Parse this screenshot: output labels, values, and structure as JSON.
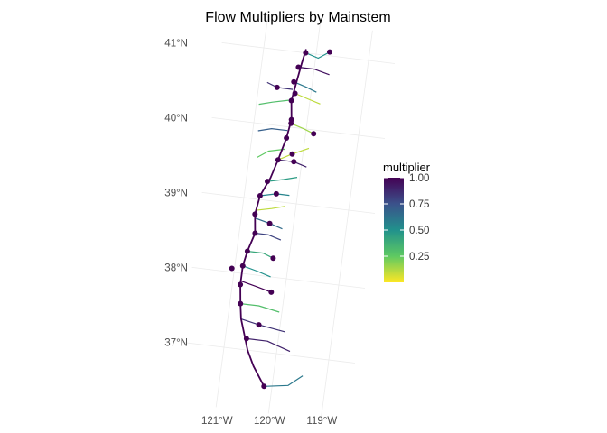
{
  "title": "Flow Multipliers by Mainstem",
  "chart_data": {
    "type": "map",
    "title": "Flow Multipliers by Mainstem",
    "projection": "tilted graticule (lat/lon)",
    "lat_labels": [
      {
        "value": 41,
        "label": "41°N"
      },
      {
        "value": 40,
        "label": "40°N"
      },
      {
        "value": 39,
        "label": "39°N"
      },
      {
        "value": 38,
        "label": "38°N"
      },
      {
        "value": 37,
        "label": "37°N"
      }
    ],
    "lon_labels": [
      {
        "value": -121,
        "label": "121°W"
      },
      {
        "value": -120,
        "label": "120°W"
      },
      {
        "value": -119,
        "label": "119°W"
      }
    ],
    "grid": true,
    "legend": {
      "title": "multiplier",
      "placement": "right",
      "scale": "viridis (reversed)",
      "range": [
        0.0,
        1.0
      ],
      "ticks": [
        {
          "value": 1.0,
          "label": "1.00"
        },
        {
          "value": 0.75,
          "label": "0.75"
        },
        {
          "value": 0.5,
          "label": "0.50"
        },
        {
          "value": 0.25,
          "label": "0.25"
        }
      ]
    },
    "mainstem": {
      "multiplier": 1.0,
      "path": [
        [
          -120.2,
          41.05
        ],
        [
          -120.25,
          40.85
        ],
        [
          -120.3,
          40.6
        ],
        [
          -120.35,
          40.35
        ],
        [
          -120.3,
          40.1
        ],
        [
          -120.35,
          39.85
        ],
        [
          -120.45,
          39.55
        ],
        [
          -120.55,
          39.3
        ],
        [
          -120.7,
          39.05
        ],
        [
          -120.75,
          38.8
        ],
        [
          -120.7,
          38.55
        ],
        [
          -120.8,
          38.3
        ],
        [
          -120.85,
          38.1
        ],
        [
          -120.85,
          37.85
        ],
        [
          -120.8,
          37.6
        ],
        [
          -120.75,
          37.4
        ],
        [
          -120.65,
          37.2
        ],
        [
          -120.55,
          37.0
        ],
        [
          -120.4,
          36.8
        ],
        [
          -120.15,
          36.55
        ]
      ]
    },
    "tributaries": [
      {
        "multiplier": 0.5,
        "path": [
          [
            -120.2,
            41.0
          ],
          [
            -119.95,
            40.95
          ],
          [
            -119.75,
            41.05
          ]
        ]
      },
      {
        "multiplier": 0.95,
        "path": [
          [
            -120.3,
            40.8
          ],
          [
            -120.0,
            40.8
          ],
          [
            -119.7,
            40.75
          ]
        ]
      },
      {
        "multiplier": 0.6,
        "path": [
          [
            -120.35,
            40.6
          ],
          [
            -120.1,
            40.55
          ],
          [
            -119.9,
            40.5
          ]
        ]
      },
      {
        "multiplier": 0.1,
        "path": [
          [
            -120.3,
            40.45
          ],
          [
            -120.05,
            40.4
          ],
          [
            -119.8,
            40.35
          ]
        ]
      },
      {
        "multiplier": 0.85,
        "path": [
          [
            -120.35,
            40.5
          ],
          [
            -120.65,
            40.5
          ],
          [
            -120.85,
            40.55
          ]
        ]
      },
      {
        "multiplier": 0.3,
        "path": [
          [
            -120.4,
            40.35
          ],
          [
            -120.7,
            40.3
          ],
          [
            -120.95,
            40.25
          ]
        ]
      },
      {
        "multiplier": 0.15,
        "path": [
          [
            -120.3,
            40.05
          ],
          [
            -120.05,
            40.0
          ],
          [
            -119.85,
            39.95
          ]
        ]
      },
      {
        "multiplier": 0.7,
        "path": [
          [
            -120.35,
            39.95
          ],
          [
            -120.65,
            39.95
          ],
          [
            -120.9,
            39.9
          ]
        ]
      },
      {
        "multiplier": 0.25,
        "path": [
          [
            -120.35,
            39.7
          ],
          [
            -120.65,
            39.65
          ],
          [
            -120.85,
            39.55
          ]
        ]
      },
      {
        "multiplier": 0.1,
        "path": [
          [
            -120.45,
            39.55
          ],
          [
            -120.2,
            39.65
          ],
          [
            -119.9,
            39.75
          ]
        ]
      },
      {
        "multiplier": 0.9,
        "path": [
          [
            -120.45,
            39.55
          ],
          [
            -120.15,
            39.55
          ],
          [
            -119.9,
            39.5
          ]
        ]
      },
      {
        "multiplier": 0.45,
        "path": [
          [
            -120.6,
            39.25
          ],
          [
            -120.3,
            39.3
          ],
          [
            -120.05,
            39.35
          ]
        ]
      },
      {
        "multiplier": 0.55,
        "path": [
          [
            -120.7,
            39.05
          ],
          [
            -120.4,
            39.1
          ],
          [
            -120.15,
            39.1
          ]
        ]
      },
      {
        "multiplier": 0.1,
        "path": [
          [
            -120.75,
            38.85
          ],
          [
            -120.45,
            38.9
          ],
          [
            -120.2,
            38.95
          ]
        ]
      },
      {
        "multiplier": 0.65,
        "path": [
          [
            -120.75,
            38.75
          ],
          [
            -120.45,
            38.7
          ],
          [
            -120.2,
            38.65
          ]
        ]
      },
      {
        "multiplier": 0.8,
        "path": [
          [
            -120.7,
            38.55
          ],
          [
            -120.45,
            38.55
          ],
          [
            -120.2,
            38.5
          ]
        ]
      },
      {
        "multiplier": 0.4,
        "path": [
          [
            -120.8,
            38.3
          ],
          [
            -120.5,
            38.3
          ],
          [
            -120.3,
            38.25
          ]
        ]
      },
      {
        "multiplier": 0.5,
        "path": [
          [
            -120.85,
            38.1
          ],
          [
            -120.55,
            38.05
          ],
          [
            -120.3,
            38.0
          ]
        ]
      },
      {
        "multiplier": 1.0,
        "path": [
          [
            -120.85,
            37.9
          ],
          [
            -120.55,
            37.85
          ],
          [
            -120.25,
            37.8
          ]
        ]
      },
      {
        "multiplier": 0.3,
        "path": [
          [
            -120.8,
            37.6
          ],
          [
            -120.45,
            37.6
          ],
          [
            -120.05,
            37.55
          ]
        ]
      },
      {
        "multiplier": 0.85,
        "path": [
          [
            -120.75,
            37.4
          ],
          [
            -120.4,
            37.35
          ],
          [
            -119.9,
            37.3
          ]
        ]
      },
      {
        "multiplier": 0.9,
        "path": [
          [
            -120.6,
            37.15
          ],
          [
            -120.2,
            37.15
          ],
          [
            -119.75,
            37.05
          ]
        ]
      },
      {
        "multiplier": 0.6,
        "path": [
          [
            -120.15,
            36.55
          ],
          [
            -119.7,
            36.6
          ],
          [
            -119.45,
            36.75
          ]
        ]
      }
    ],
    "points": [
      [
        -120.2,
        41.0
      ],
      [
        -119.75,
        41.05
      ],
      [
        -120.3,
        40.8
      ],
      [
        -120.35,
        40.6
      ],
      [
        -120.65,
        40.5
      ],
      [
        -120.3,
        40.45
      ],
      [
        -120.35,
        40.35
      ],
      [
        -120.3,
        40.1
      ],
      [
        -120.3,
        40.05
      ],
      [
        -119.85,
        39.95
      ],
      [
        -120.35,
        39.85
      ],
      [
        -120.45,
        39.55
      ],
      [
        -120.2,
        39.65
      ],
      [
        -120.15,
        39.55
      ],
      [
        -120.6,
        39.25
      ],
      [
        -120.4,
        39.1
      ],
      [
        -120.7,
        39.05
      ],
      [
        -120.75,
        38.8
      ],
      [
        -120.45,
        38.7
      ],
      [
        -120.7,
        38.55
      ],
      [
        -120.8,
        38.3
      ],
      [
        -120.3,
        38.25
      ],
      [
        -120.85,
        38.1
      ],
      [
        -121.05,
        38.05
      ],
      [
        -120.85,
        37.85
      ],
      [
        -120.25,
        37.8
      ],
      [
        -120.8,
        37.6
      ],
      [
        -120.4,
        37.35
      ],
      [
        -120.6,
        37.15
      ],
      [
        -120.15,
        36.55
      ]
    ]
  }
}
